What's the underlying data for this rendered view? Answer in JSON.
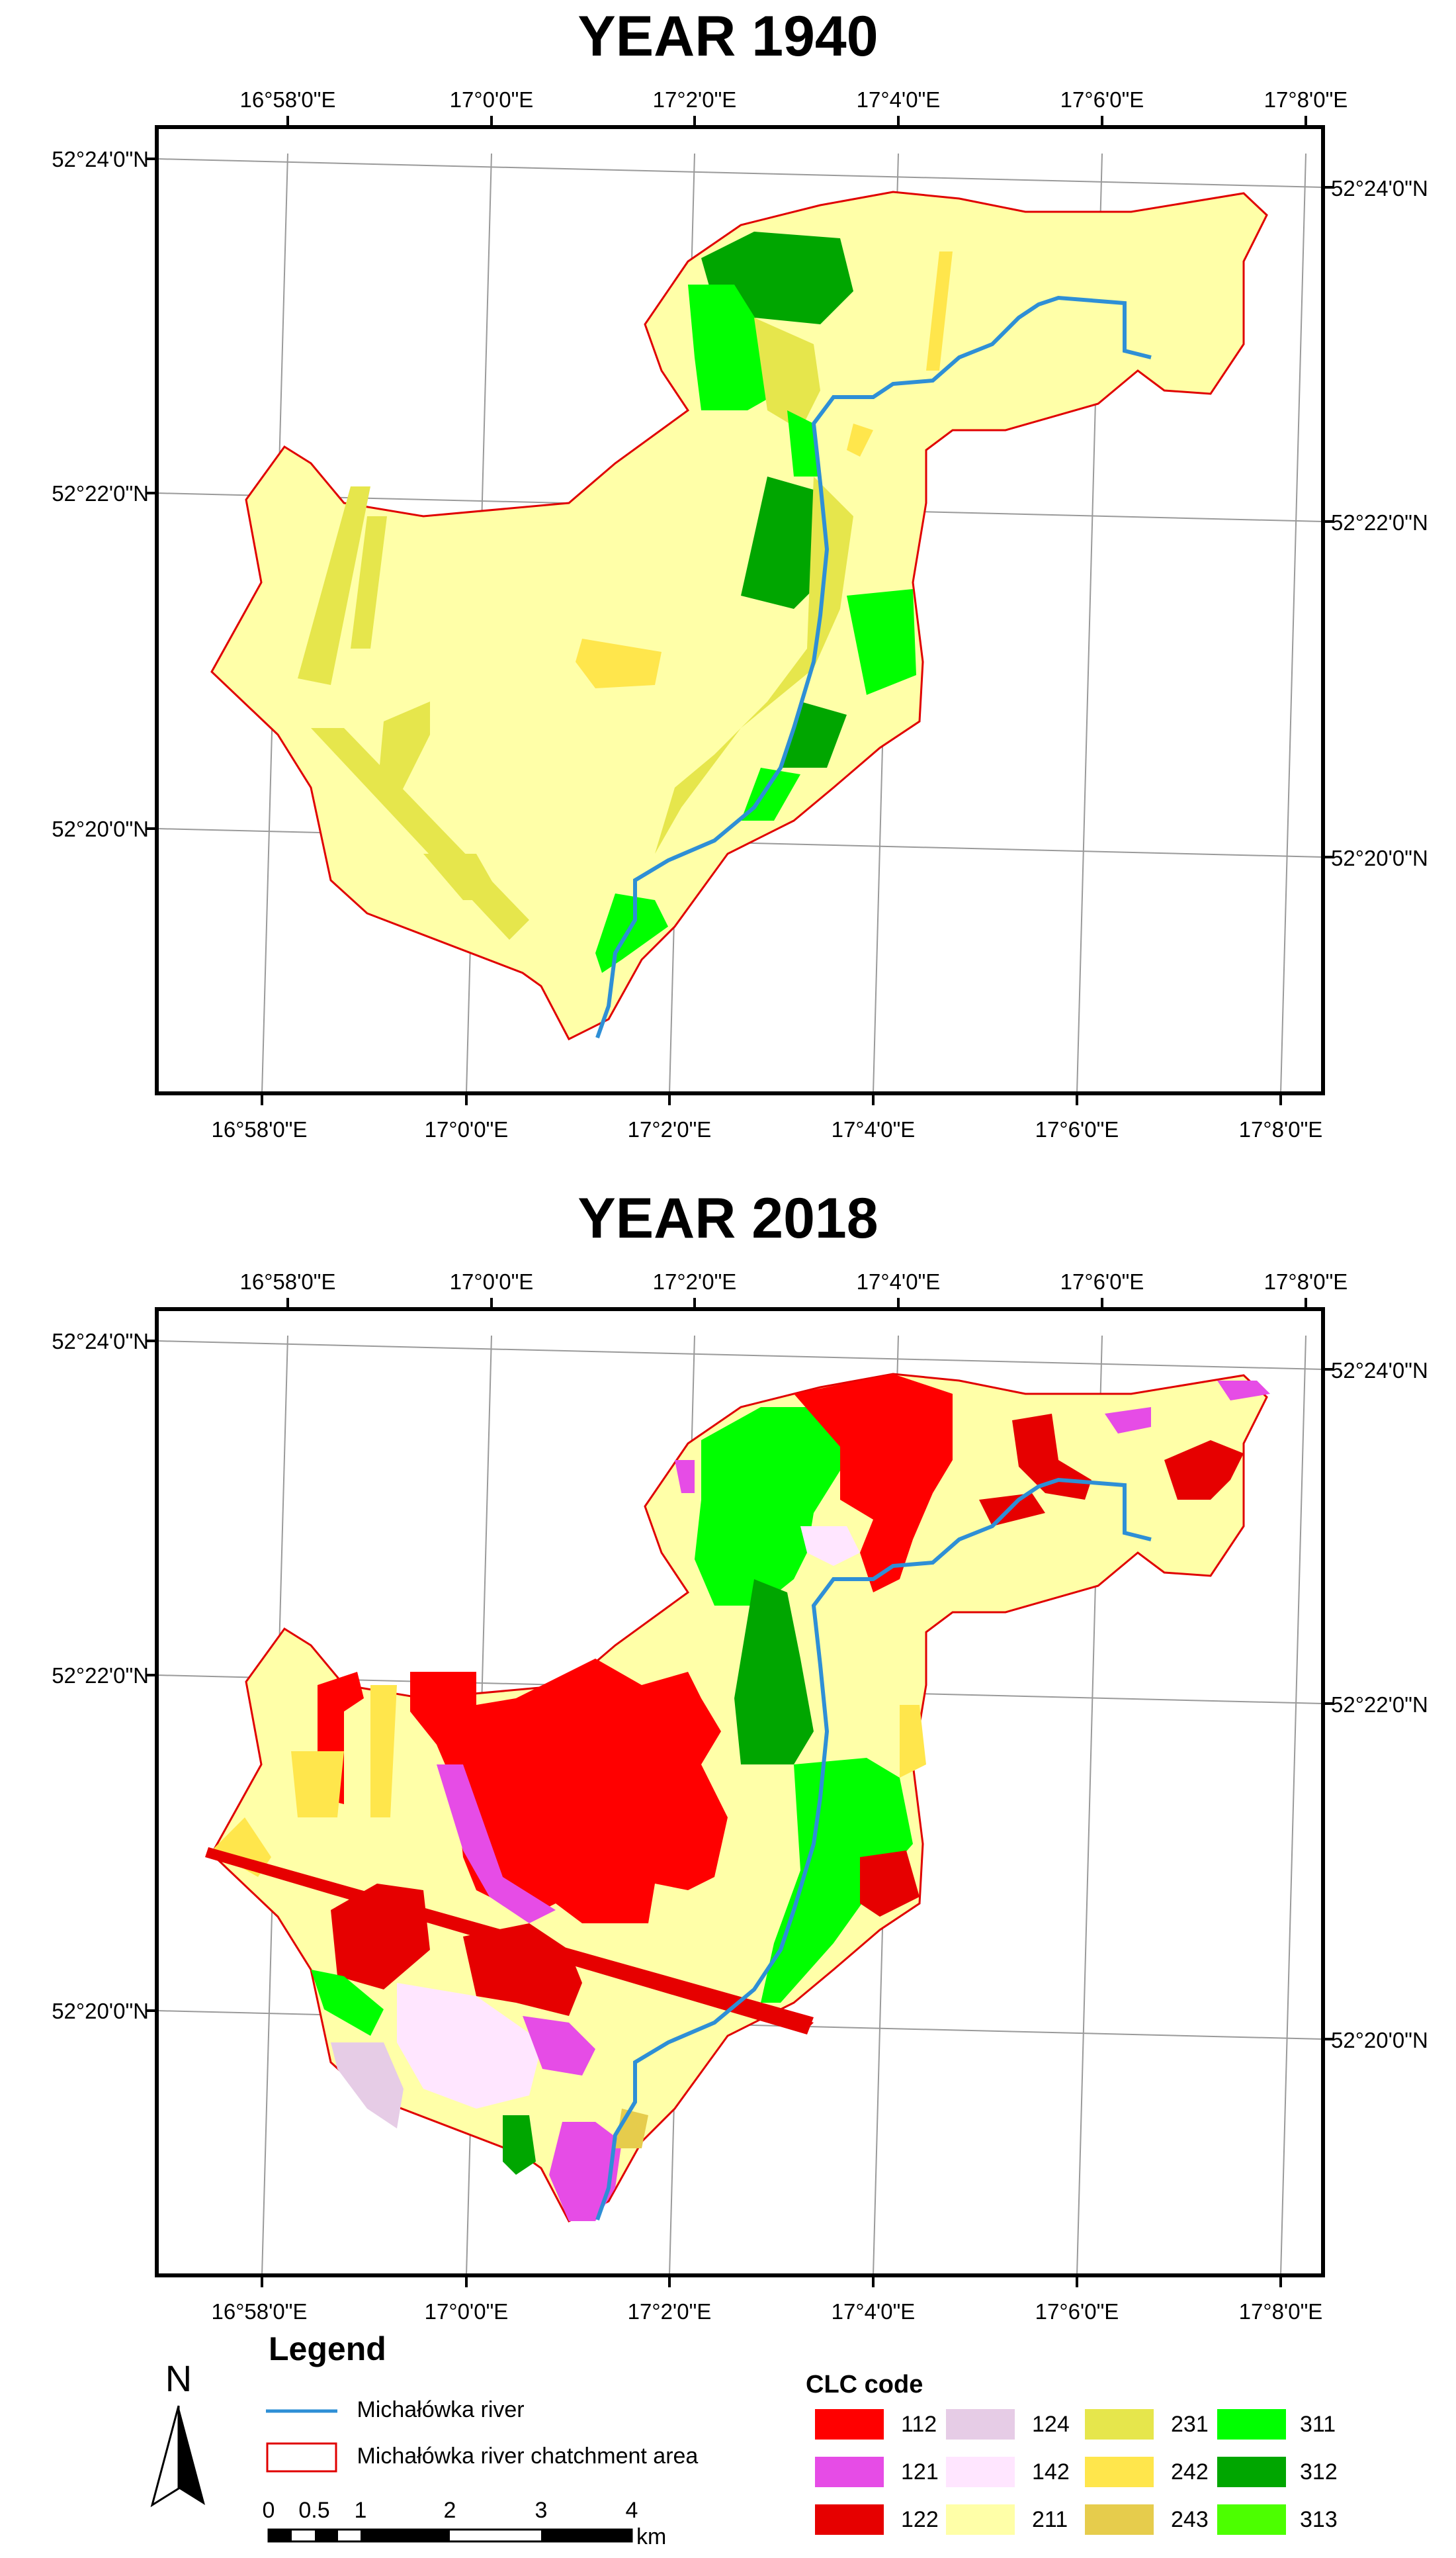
{
  "maps": [
    {
      "title": "YEAR 1940",
      "lon_labels": [
        "16°58'0\"E",
        "17°0'0\"E",
        "17°2'0\"E",
        "17°4'0\"E",
        "17°6'0\"E",
        "17°8'0\"E"
      ],
      "lat_labels": [
        "52°24'0\"N",
        "52°22'0\"N",
        "52°20'0\"N"
      ]
    },
    {
      "title": "YEAR 2018",
      "lon_labels": [
        "16°58'0\"E",
        "17°0'0\"E",
        "17°2'0\"E",
        "17°4'0\"E",
        "17°6'0\"E",
        "17°8'0\"E"
      ],
      "lat_labels": [
        "52°24'0\"N",
        "52°22'0\"N",
        "52°20'0\"N"
      ]
    }
  ],
  "legend": {
    "title": "Legend",
    "river_label": "Michałówka river",
    "catchment_label": "Michałówka river chatchment area",
    "north_label": "N",
    "scale_ticks": [
      "0",
      "0.5",
      "1",
      "2",
      "3",
      "4"
    ],
    "scale_unit": "km"
  },
  "clc": {
    "title": "CLC code",
    "items": [
      {
        "code": "112",
        "color": "#ff0000"
      },
      {
        "code": "121",
        "color": "#e64ce6"
      },
      {
        "code": "122",
        "color": "#e60000"
      },
      {
        "code": "124",
        "color": "#e6cce6"
      },
      {
        "code": "142",
        "color": "#ffe6ff"
      },
      {
        "code": "211",
        "color": "#ffffa8"
      },
      {
        "code": "231",
        "color": "#e6e64c"
      },
      {
        "code": "242",
        "color": "#ffe64c"
      },
      {
        "code": "243",
        "color": "#e6cc4c"
      },
      {
        "code": "311",
        "color": "#00ff00"
      },
      {
        "code": "312",
        "color": "#00a600"
      },
      {
        "code": "313",
        "color": "#4cff00"
      }
    ]
  },
  "colors": {
    "river": "#2e8fd6",
    "catchment_border": "#e00000",
    "frame": "#000000",
    "graticule": "#9a9a9a"
  }
}
